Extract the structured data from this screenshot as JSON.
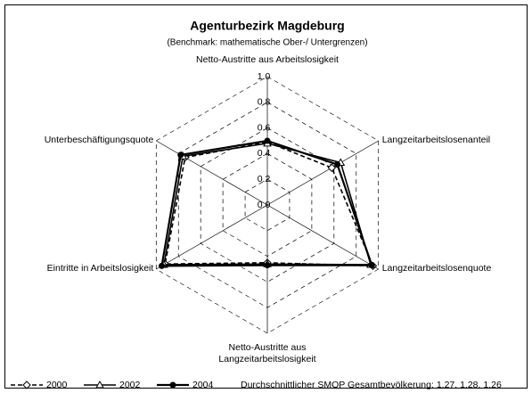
{
  "chart_data": {
    "type": "radar",
    "title": "Agenturbezirk Magdeburg",
    "subtitle": "(Benchmark: mathematische Ober-/ Untergrenzen)",
    "categories": [
      "Netto-Austritte aus Arbeitslosigkeit",
      "Langzeitarbeitslosenanteil",
      "Langzeitarbeitslosenquote",
      "Netto-Austritte aus Langzeitarbeitslosigkeit",
      "Eintritte in Arbeitslosigkeit",
      "Unterbeschäftigungsquote"
    ],
    "series": [
      {
        "name": "2000",
        "color": "#000000",
        "line_style": "dashed",
        "marker": "diamond",
        "values": [
          0.49,
          0.58,
          0.95,
          0.45,
          0.92,
          0.74
        ]
      },
      {
        "name": "2002",
        "color": "#000000",
        "line_style": "solid",
        "marker": "triangle",
        "values": [
          0.48,
          0.66,
          0.93,
          0.46,
          0.93,
          0.76
        ]
      },
      {
        "name": "2004",
        "color": "#000000",
        "line_style": "solid-bold",
        "marker": "circle",
        "values": [
          0.5,
          0.63,
          0.94,
          0.47,
          0.95,
          0.78
        ]
      }
    ],
    "ylim": [
      0,
      1
    ],
    "yticks": [
      {
        "value": 0,
        "label": "0.0"
      },
      0.2,
      0.4,
      0.6,
      0.8,
      {
        "value": 1,
        "label": "1.0"
      }
    ],
    "grid": true,
    "legend": "bottom-left",
    "footnote": "Durchschnittlicher SMOP Gesamtbevölkerung: 1.27, 1.28, 1.26"
  }
}
